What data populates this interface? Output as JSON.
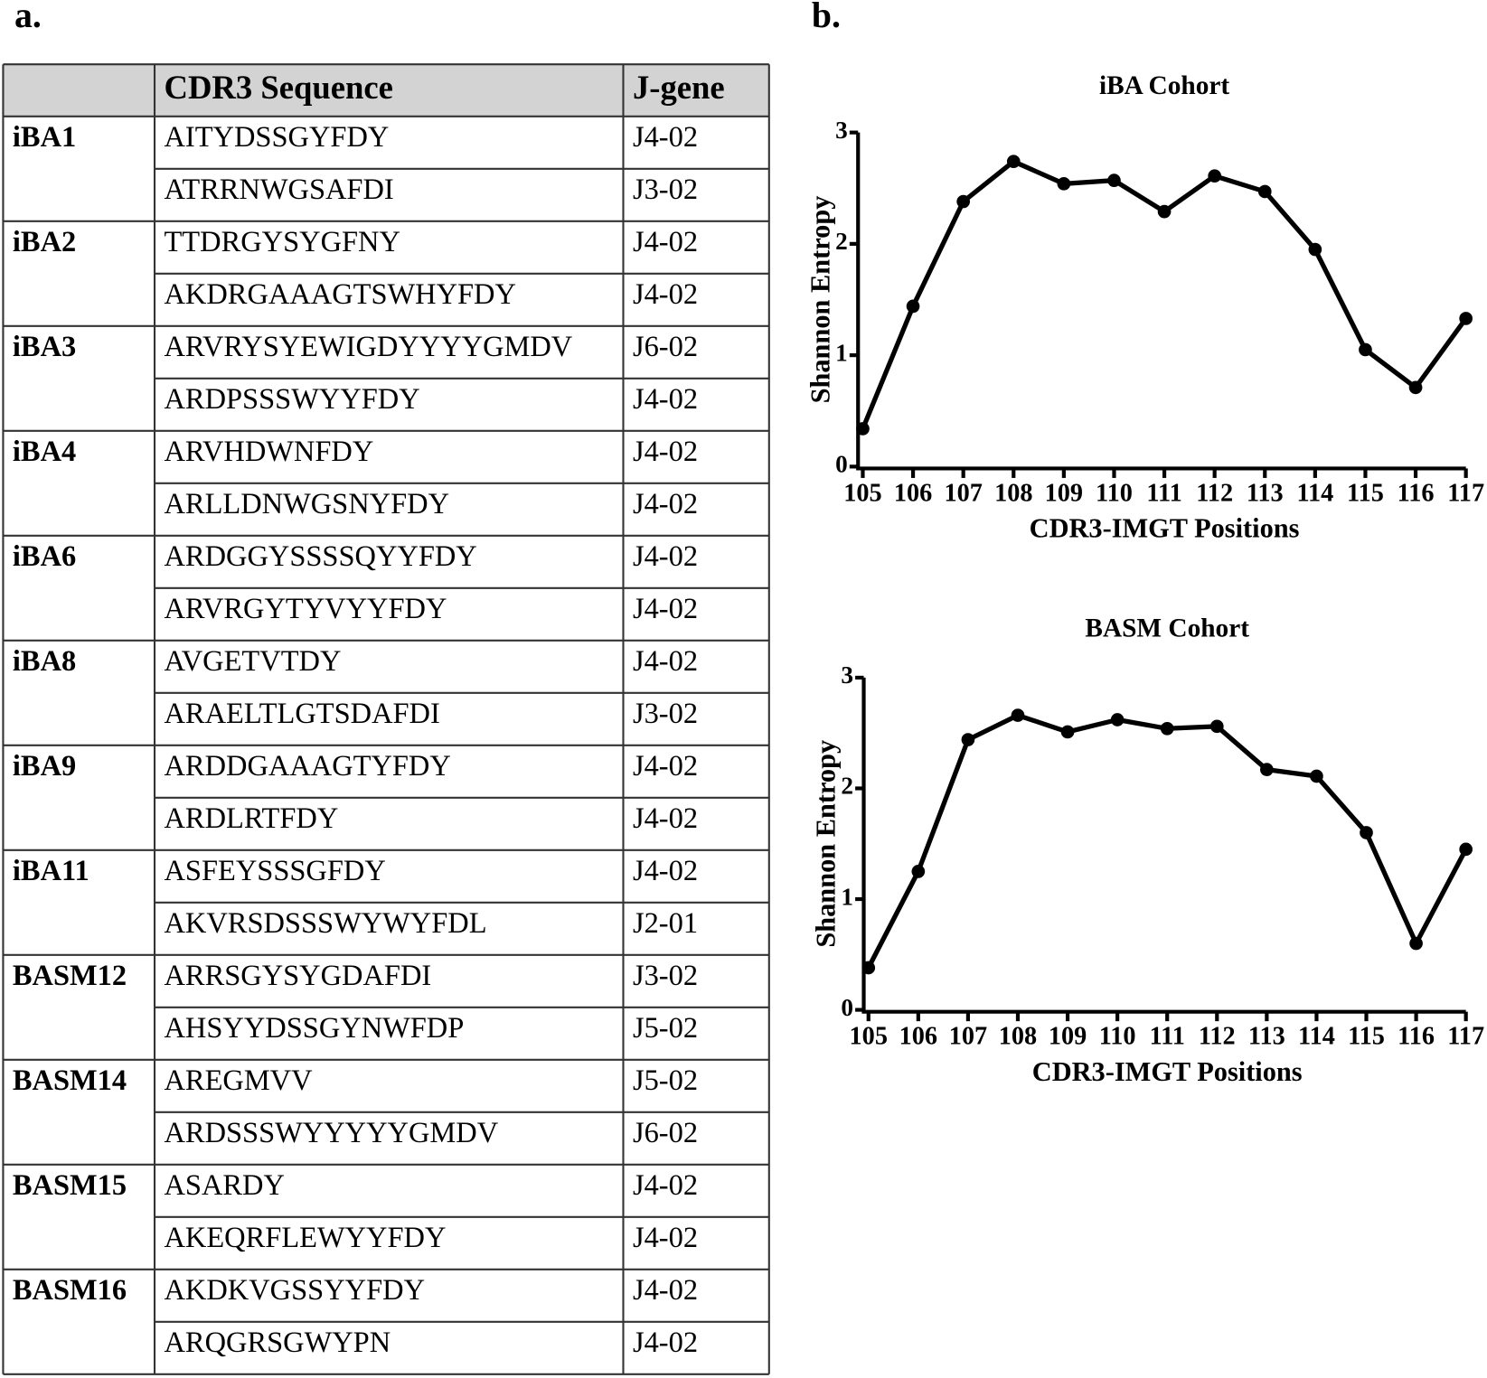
{
  "panels": {
    "a": "a.",
    "b": "b."
  },
  "table": {
    "header": {
      "sequence": "CDR3 Sequence",
      "jgene": "J-gene"
    },
    "groups": [
      {
        "sample": "iBA1",
        "rows": [
          [
            "AITYDSSGYFDY",
            "J4-02"
          ],
          [
            "ATRRNWGSAFDI",
            "J3-02"
          ]
        ]
      },
      {
        "sample": "iBA2",
        "rows": [
          [
            "TTDRGYSYGFNY",
            "J4-02"
          ],
          [
            "AKDRGAAAGTSWHYFDY",
            "J4-02"
          ]
        ]
      },
      {
        "sample": "iBA3",
        "rows": [
          [
            "ARVRYSYEWIGDYYYYGMDV",
            "J6-02"
          ],
          [
            "ARDPSSSWYYFDY",
            "J4-02"
          ]
        ]
      },
      {
        "sample": "iBA4",
        "rows": [
          [
            "ARVHDWNFDY",
            "J4-02"
          ],
          [
            "ARLLDNWGSNYFDY",
            "J4-02"
          ]
        ]
      },
      {
        "sample": "iBA6",
        "rows": [
          [
            "ARDGGYSSSSQYYFDY",
            "J4-02"
          ],
          [
            "ARVRGYTYVYYFDY",
            "J4-02"
          ]
        ]
      },
      {
        "sample": "iBA8",
        "rows": [
          [
            "AVGETVTDY",
            "J4-02"
          ],
          [
            "ARAELTLGTSDAFDI",
            "J3-02"
          ]
        ]
      },
      {
        "sample": "iBA9",
        "rows": [
          [
            "ARDDGAAAGTYFDY",
            "J4-02"
          ],
          [
            "ARDLRTFDY",
            "J4-02"
          ]
        ]
      },
      {
        "sample": "iBA11",
        "rows": [
          [
            "ASFEYSSSGFDY",
            "J4-02"
          ],
          [
            "AKVRSDSSSWYWYFDL",
            "J2-01"
          ]
        ]
      },
      {
        "sample": "BASM12",
        "rows": [
          [
            "ARRSGYSYGDAFDI",
            "J3-02"
          ],
          [
            "AHSYYDSSGYNWFDP",
            "J5-02"
          ]
        ]
      },
      {
        "sample": "BASM14",
        "rows": [
          [
            "AREGMVV",
            "J5-02"
          ],
          [
            "ARDSSSWYYYYYGMDV",
            "J6-02"
          ]
        ]
      },
      {
        "sample": "BASM15",
        "rows": [
          [
            "ASARDY",
            "J4-02"
          ],
          [
            "AKEQRFLEWYYFDY",
            "J4-02"
          ]
        ]
      },
      {
        "sample": "BASM16",
        "rows": [
          [
            "AKDKVGSSYYFDY",
            "J4-02"
          ],
          [
            "ARQGRSGWYPN",
            "J4-02"
          ]
        ]
      }
    ]
  },
  "chart_data": [
    {
      "type": "line",
      "title": "iBA Cohort",
      "xlabel": "CDR3-IMGT Positions",
      "ylabel": "Shannon Entropy",
      "x": [
        105,
        106,
        107,
        108,
        109,
        110,
        111,
        112,
        113,
        114,
        115,
        116,
        117
      ],
      "values": [
        0.34,
        1.44,
        2.38,
        2.74,
        2.54,
        2.57,
        2.29,
        2.61,
        2.47,
        1.95,
        1.05,
        0.71,
        1.33
      ],
      "color": "#000000",
      "xlim": [
        105,
        117
      ],
      "xticks": [
        105,
        106,
        107,
        108,
        109,
        110,
        111,
        112,
        113,
        114,
        115,
        116,
        117
      ],
      "ylim": [
        0,
        3
      ],
      "yticks": [
        0,
        1,
        2,
        3
      ]
    },
    {
      "type": "line",
      "title": "BASM Cohort",
      "xlabel": "CDR3-IMGT Positions",
      "ylabel": "Shannon Entropy",
      "x": [
        105,
        106,
        107,
        108,
        109,
        110,
        111,
        112,
        113,
        114,
        115,
        116,
        117
      ],
      "values": [
        0.38,
        1.25,
        2.44,
        2.66,
        2.51,
        2.62,
        2.54,
        2.56,
        2.17,
        2.11,
        1.6,
        0.6,
        1.45
      ],
      "color": "#000000",
      "xlim": [
        105,
        117
      ],
      "xticks": [
        105,
        106,
        107,
        108,
        109,
        110,
        111,
        112,
        113,
        114,
        115,
        116,
        117
      ],
      "ylim": [
        0,
        3
      ],
      "yticks": [
        0,
        1,
        2,
        3
      ]
    }
  ]
}
